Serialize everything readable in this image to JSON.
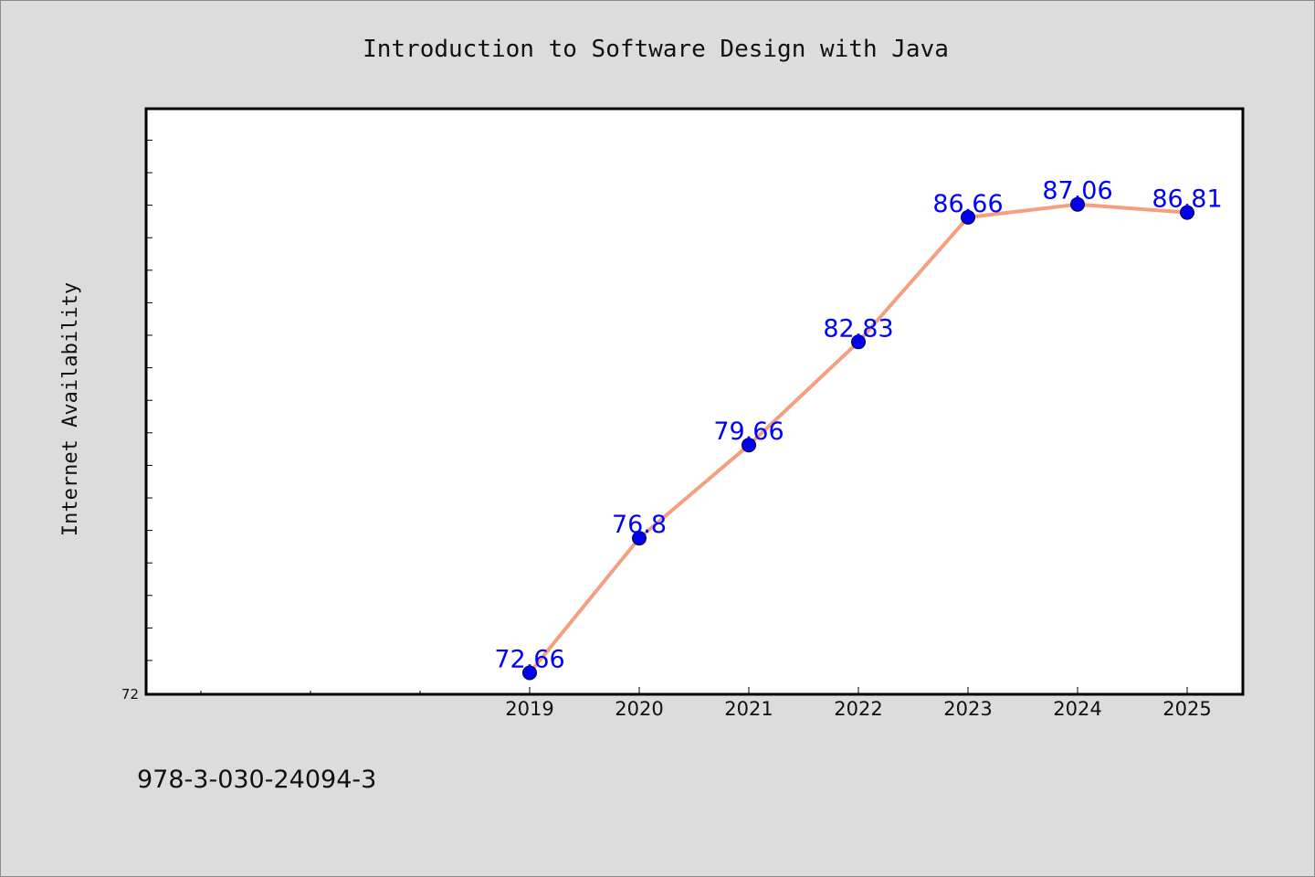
{
  "chart_data": {
    "type": "line",
    "title": "Introduction to Software Design with Java",
    "xlabel": "",
    "ylabel": "Internet Availability",
    "categories": [
      "2019",
      "2020",
      "2021",
      "2022",
      "2023",
      "2024",
      "2025"
    ],
    "series": [
      {
        "name": "",
        "values": [
          72.66,
          76.8,
          79.66,
          82.83,
          86.66,
          87.06,
          86.81
        ],
        "labels": [
          "72.66",
          "76.8",
          "79.66",
          "82.83",
          "86.66",
          "87.06",
          "86.81"
        ]
      }
    ],
    "y_tick_labels": [
      "72"
    ],
    "ylim": [
      72,
      90
    ],
    "grid": false,
    "line_color": "#f4a080",
    "marker_color": "#0000ee",
    "label_color": "#0000ff"
  },
  "footer": {
    "isbn": "978-3-030-24094-3"
  }
}
